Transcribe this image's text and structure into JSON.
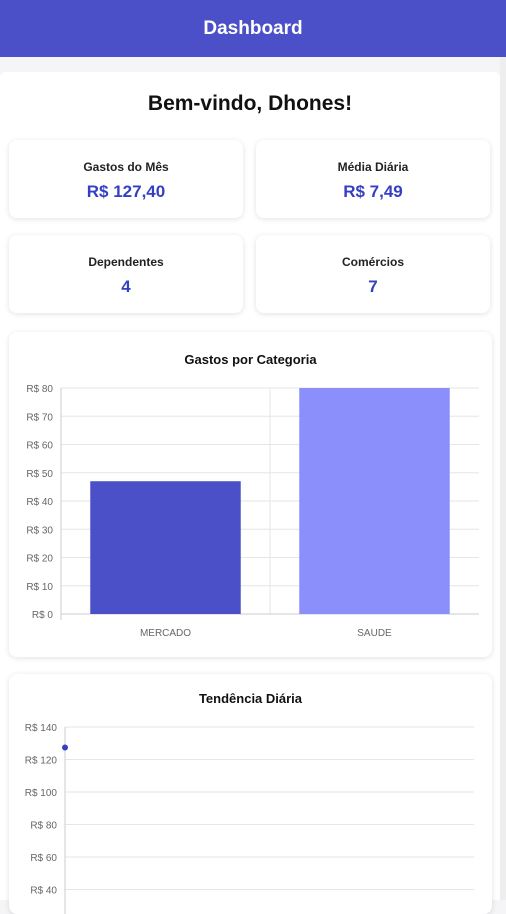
{
  "header": {
    "title": "Dashboard"
  },
  "welcome": "Bem-vindo, Dhones!",
  "stats": [
    {
      "label": "Gastos do Mês",
      "value": "R$ 127,40"
    },
    {
      "label": "Média Diária",
      "value": "R$ 7,49"
    },
    {
      "label": "Dependentes",
      "value": "4"
    },
    {
      "label": "Comércios",
      "value": "7"
    }
  ],
  "chart_data": [
    {
      "type": "bar",
      "title": "Gastos por Categoria",
      "categories": [
        "MERCADO",
        "SAUDE"
      ],
      "values": [
        47,
        80
      ],
      "colors": [
        "#4b50c8",
        "#8a8ffc"
      ],
      "ylim": [
        0,
        80
      ],
      "yticks": [
        "R$ 0",
        "R$ 10",
        "R$ 20",
        "R$ 30",
        "R$ 40",
        "R$ 50",
        "R$ 60",
        "R$ 70",
        "R$ 80"
      ],
      "grid": true
    },
    {
      "type": "line",
      "title": "Tendência Diária",
      "x": [
        1
      ],
      "values": [
        127.4
      ],
      "ylim": [
        0,
        140
      ],
      "yticks": [
        "R$ 40",
        "R$ 60",
        "R$ 80",
        "R$ 100",
        "R$ 120",
        "R$ 140"
      ],
      "color": "#3540c0",
      "grid": true
    }
  ]
}
